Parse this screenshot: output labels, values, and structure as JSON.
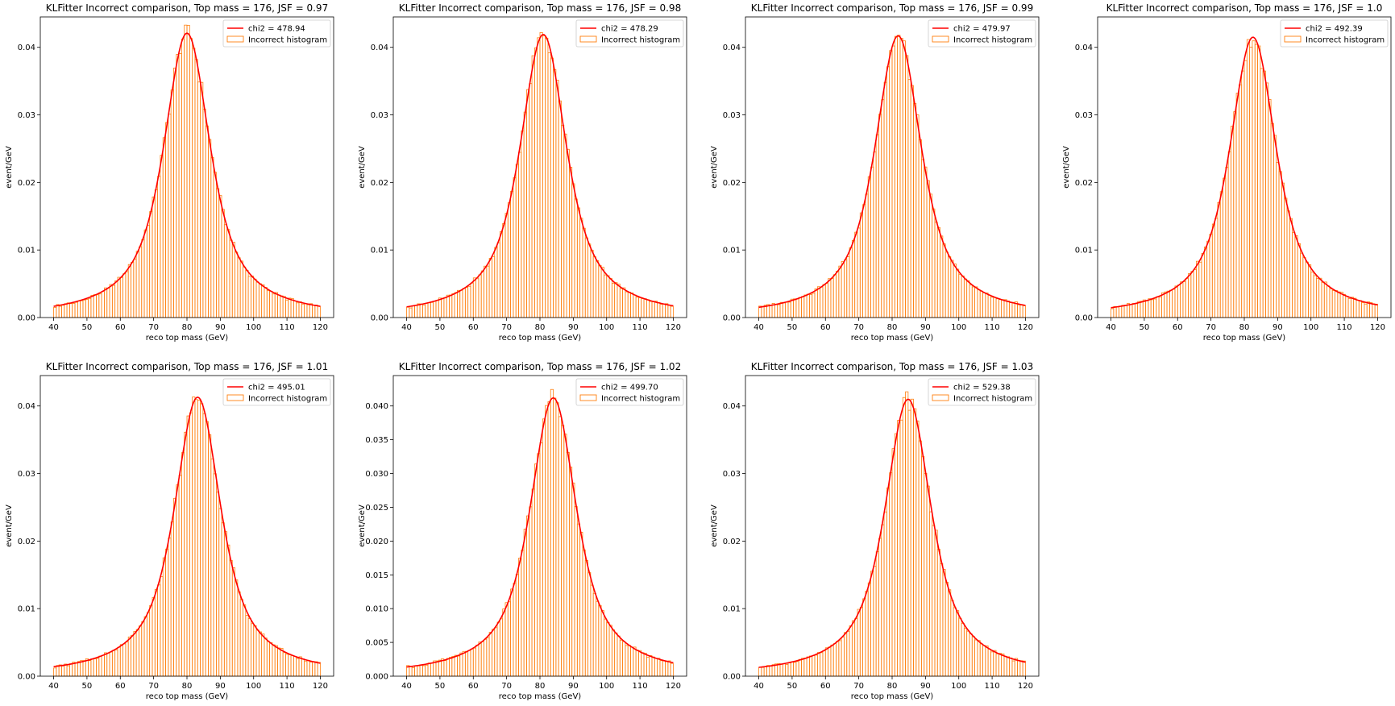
{
  "figure": {
    "background": "#ffffff",
    "hist_color": "#ff7f0e",
    "fit_color": "#ff0000"
  },
  "chart_data": [
    {
      "type": "bar",
      "title": "KLFitter Incorrect comparison, Top mass = 176, JSF = 0.97",
      "xlabel": "reco top mass (GeV)",
      "ylabel": "event/GeV",
      "xlim": [
        36,
        124
      ],
      "ylim": [
        0,
        0.0445
      ],
      "xticks": [
        "40",
        "50",
        "60",
        "70",
        "80",
        "90",
        "100",
        "110",
        "120"
      ],
      "yticks": [
        "0.00",
        "0.01",
        "0.02",
        "0.03",
        "0.04"
      ],
      "yticks_values": [
        0,
        0.01,
        0.02,
        0.03,
        0.04
      ],
      "bin_range": [
        40,
        120
      ],
      "legend_position": "upper-right",
      "legend": [
        "chi2 = 478.94",
        "Incorrect histogram"
      ],
      "fit": {
        "peak_x": 80.0,
        "peak_y": 0.0421
      },
      "series": [
        {
          "name": "Incorrect histogram",
          "kind": "histogram"
        },
        {
          "name": "chi2 = 478.94",
          "kind": "fit-line"
        }
      ]
    },
    {
      "type": "bar",
      "title": "KLFitter Incorrect comparison, Top mass = 176, JSF = 0.98",
      "xlabel": "reco top mass (GeV)",
      "ylabel": "event/GeV",
      "xlim": [
        36,
        124
      ],
      "ylim": [
        0,
        0.0445
      ],
      "xticks": [
        "40",
        "50",
        "60",
        "70",
        "80",
        "90",
        "100",
        "110",
        "120"
      ],
      "yticks": [
        "0.00",
        "0.01",
        "0.02",
        "0.03",
        "0.04"
      ],
      "yticks_values": [
        0,
        0.01,
        0.02,
        0.03,
        0.04
      ],
      "bin_range": [
        40,
        120
      ],
      "legend_position": "upper-right",
      "legend": [
        "chi2 = 478.29",
        "Incorrect histogram"
      ],
      "fit": {
        "peak_x": 81.0,
        "peak_y": 0.0419
      },
      "series": [
        {
          "name": "Incorrect histogram",
          "kind": "histogram"
        },
        {
          "name": "chi2 = 478.29",
          "kind": "fit-line"
        }
      ]
    },
    {
      "type": "bar",
      "title": "KLFitter Incorrect comparison, Top mass = 176, JSF = 0.99",
      "xlabel": "reco top mass (GeV)",
      "ylabel": "event/GeV",
      "xlim": [
        36,
        124
      ],
      "ylim": [
        0,
        0.0445
      ],
      "xticks": [
        "40",
        "50",
        "60",
        "70",
        "80",
        "90",
        "100",
        "110",
        "120"
      ],
      "yticks": [
        "0.00",
        "0.01",
        "0.02",
        "0.03",
        "0.04"
      ],
      "yticks_values": [
        0,
        0.01,
        0.02,
        0.03,
        0.04
      ],
      "bin_range": [
        40,
        120
      ],
      "legend_position": "upper-right",
      "legend": [
        "chi2 = 479.97",
        "Incorrect histogram"
      ],
      "fit": {
        "peak_x": 81.8,
        "peak_y": 0.0417
      },
      "series": [
        {
          "name": "Incorrect histogram",
          "kind": "histogram"
        },
        {
          "name": "chi2 = 479.97",
          "kind": "fit-line"
        }
      ]
    },
    {
      "type": "bar",
      "title": "KLFitter Incorrect comparison, Top mass = 176, JSF = 1.0",
      "xlabel": "reco top mass (GeV)",
      "ylabel": "event/GeV",
      "xlim": [
        36,
        124
      ],
      "ylim": [
        0,
        0.0445
      ],
      "xticks": [
        "40",
        "50",
        "60",
        "70",
        "80",
        "90",
        "100",
        "110",
        "120"
      ],
      "yticks": [
        "0.00",
        "0.01",
        "0.02",
        "0.03",
        "0.04"
      ],
      "yticks_values": [
        0,
        0.01,
        0.02,
        0.03,
        0.04
      ],
      "bin_range": [
        40,
        120
      ],
      "legend_position": "upper-right",
      "legend": [
        "chi2 = 492.39",
        "Incorrect histogram"
      ],
      "fit": {
        "peak_x": 82.6,
        "peak_y": 0.0415
      },
      "series": [
        {
          "name": "Incorrect histogram",
          "kind": "histogram"
        },
        {
          "name": "chi2 = 492.39",
          "kind": "fit-line"
        }
      ]
    },
    {
      "type": "bar",
      "title": "KLFitter Incorrect comparison, Top mass = 176, JSF = 1.01",
      "xlabel": "reco top mass (GeV)",
      "ylabel": "event/GeV",
      "xlim": [
        36,
        124
      ],
      "ylim": [
        0,
        0.0445
      ],
      "xticks": [
        "40",
        "50",
        "60",
        "70",
        "80",
        "90",
        "100",
        "110",
        "120"
      ],
      "yticks": [
        "0.00",
        "0.01",
        "0.02",
        "0.03",
        "0.04"
      ],
      "yticks_values": [
        0,
        0.01,
        0.02,
        0.03,
        0.04
      ],
      "bin_range": [
        40,
        120
      ],
      "legend_position": "upper-right",
      "legend": [
        "chi2 = 495.01",
        "Incorrect histogram"
      ],
      "fit": {
        "peak_x": 83.2,
        "peak_y": 0.0413
      },
      "series": [
        {
          "name": "Incorrect histogram",
          "kind": "histogram"
        },
        {
          "name": "chi2 = 495.01",
          "kind": "fit-line"
        }
      ]
    },
    {
      "type": "bar",
      "title": "KLFitter Incorrect comparison, Top mass = 176, JSF = 1.02",
      "xlabel": "reco top mass (GeV)",
      "ylabel": "event/GeV",
      "xlim": [
        36,
        124
      ],
      "ylim": [
        0,
        0.0445
      ],
      "xticks": [
        "40",
        "50",
        "60",
        "70",
        "80",
        "90",
        "100",
        "110",
        "120"
      ],
      "yticks": [
        "0.000",
        "0.005",
        "0.010",
        "0.015",
        "0.020",
        "0.025",
        "0.030",
        "0.035",
        "0.040"
      ],
      "yticks_values": [
        0,
        0.005,
        0.01,
        0.015,
        0.02,
        0.025,
        0.03,
        0.035,
        0.04
      ],
      "bin_range": [
        40,
        120
      ],
      "legend_position": "upper-right",
      "legend": [
        "chi2 = 499.70",
        "Incorrect histogram"
      ],
      "fit": {
        "peak_x": 84.0,
        "peak_y": 0.0412
      },
      "series": [
        {
          "name": "Incorrect histogram",
          "kind": "histogram"
        },
        {
          "name": "chi2 = 499.70",
          "kind": "fit-line"
        }
      ]
    },
    {
      "type": "bar",
      "title": "KLFitter Incorrect comparison, Top mass = 176, JSF = 1.03",
      "xlabel": "reco top mass (GeV)",
      "ylabel": "event/GeV",
      "xlim": [
        36,
        124
      ],
      "ylim": [
        0,
        0.0445
      ],
      "xticks": [
        "40",
        "50",
        "60",
        "70",
        "80",
        "90",
        "100",
        "110",
        "120"
      ],
      "yticks": [
        "0.00",
        "0.01",
        "0.02",
        "0.03",
        "0.04"
      ],
      "yticks_values": [
        0,
        0.01,
        0.02,
        0.03,
        0.04
      ],
      "bin_range": [
        40,
        120
      ],
      "legend_position": "upper-right",
      "legend": [
        "chi2 = 529.38",
        "Incorrect histogram"
      ],
      "fit": {
        "peak_x": 84.8,
        "peak_y": 0.041
      },
      "series": [
        {
          "name": "Incorrect histogram",
          "kind": "histogram"
        },
        {
          "name": "chi2 = 529.38",
          "kind": "fit-line"
        }
      ]
    }
  ]
}
